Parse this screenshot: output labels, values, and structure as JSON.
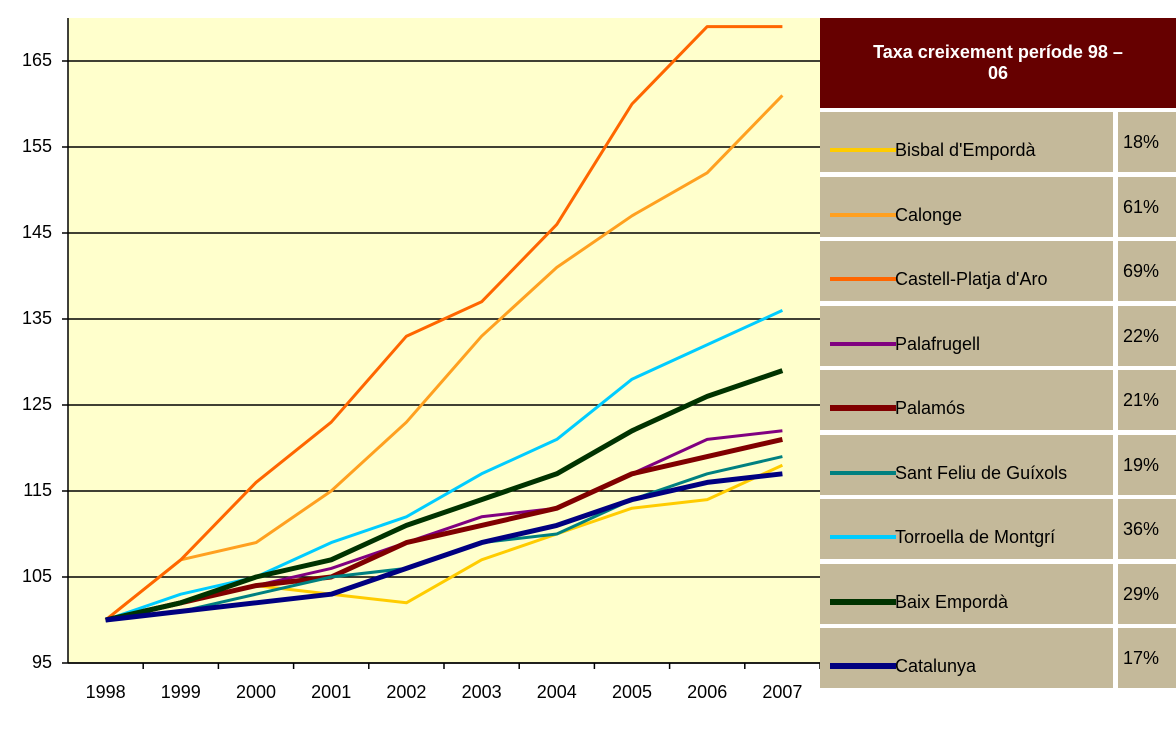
{
  "chart_data": {
    "type": "line",
    "categories": [
      "1998",
      "1999",
      "2000",
      "2001",
      "2002",
      "2003",
      "2004",
      "2005",
      "2006",
      "2007"
    ],
    "ylim": [
      95,
      170
    ],
    "yticks": [
      95,
      105,
      115,
      125,
      135,
      145,
      155,
      165
    ],
    "grid": true,
    "legend_title": "Taxa creixement període 98 – 06",
    "series": [
      {
        "name": "Bisbal d'Empordà",
        "color": "#ffcc00",
        "width": 3,
        "rate": "18%",
        "values": [
          100,
          102,
          104,
          103,
          102,
          107,
          110,
          113,
          114,
          118
        ]
      },
      {
        "name": "Calonge",
        "color": "#ffa020",
        "width": 3,
        "rate": "61%",
        "values": [
          100,
          107,
          109,
          115,
          123,
          133,
          141,
          147,
          152,
          161
        ]
      },
      {
        "name": "Castell-Platja d'Aro",
        "color": "#ff6600",
        "width": 3,
        "rate": "69%",
        "values": [
          100,
          107,
          116,
          123,
          133,
          137,
          146,
          160,
          169,
          169
        ]
      },
      {
        "name": "Palafrugell",
        "color": "#800080",
        "width": 3,
        "rate": "22%",
        "values": [
          100,
          102,
          104,
          106,
          109,
          112,
          113,
          117,
          121,
          122
        ]
      },
      {
        "name": "Palamós",
        "color": "#800000",
        "width": 5,
        "rate": "21%",
        "values": [
          100,
          102,
          104,
          105,
          109,
          111,
          113,
          117,
          119,
          121
        ]
      },
      {
        "name": "Sant Feliu de Guíxols",
        "color": "#008080",
        "width": 3,
        "rate": "19%",
        "values": [
          100,
          101,
          103,
          105,
          106,
          109,
          110,
          114,
          117,
          119
        ]
      },
      {
        "name": "Torroella de Montgrí",
        "color": "#00ccff",
        "width": 3,
        "rate": "36%",
        "values": [
          100,
          103,
          105,
          109,
          112,
          117,
          121,
          128,
          132,
          136
        ]
      },
      {
        "name": "Baix Empordà",
        "color": "#003300",
        "width": 5,
        "rate": "29%",
        "values": [
          100,
          102,
          105,
          107,
          111,
          114,
          117,
          122,
          126,
          129
        ]
      },
      {
        "name": "Catalunya",
        "color": "#000080",
        "width": 5,
        "rate": "17%",
        "values": [
          100,
          101,
          102,
          103,
          106,
          109,
          111,
          114,
          116,
          117
        ]
      }
    ]
  }
}
